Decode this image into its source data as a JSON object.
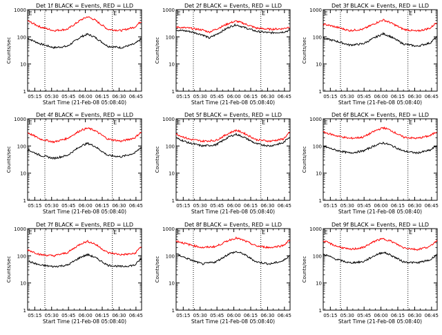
{
  "figure": {
    "ylabel": "Counts/sec",
    "xlabel": "Start Time (21-Feb-08 05:08:40)",
    "series_colors": {
      "events": "#000000",
      "lld": "#ff0000"
    },
    "background": "#ffffff"
  },
  "chart_data": [
    {
      "type": "line",
      "title": "Det 1f BLACK = Events, RED = LLD",
      "xlabel": "Start Time (21-Feb-08 05:08:40)",
      "ylabel": "Counts/sec",
      "yscale": "log",
      "ylim": [
        1,
        1000
      ],
      "x_tick_labels": [
        "05:15",
        "05:30",
        "05:45",
        "06:00",
        "06:15",
        "06:30",
        "06:45"
      ],
      "y_tick_labels": [
        "1",
        "10",
        "100",
        "1000"
      ],
      "markers": {
        "lines": [
          "05:24",
          "06:24"
        ],
        "labels": [
          "E"
        ]
      },
      "x": [
        "05:08",
        "05:20",
        "05:32",
        "05:44",
        "05:56",
        "06:02",
        "06:08",
        "06:20",
        "06:32",
        "06:44",
        "06:49"
      ],
      "series": [
        {
          "values": [
            90,
            55,
            40,
            45,
            100,
            125,
            100,
            45,
            40,
            55,
            80
          ]
        },
        {
          "values": [
            400,
            230,
            170,
            190,
            420,
            550,
            430,
            190,
            170,
            230,
            360
          ]
        }
      ]
    },
    {
      "type": "line",
      "title": "Det 2f BLACK = Events, RED = LLD",
      "xlabel": "Start Time (21-Feb-08 05:08:40)",
      "ylabel": "Counts/sec",
      "yscale": "log",
      "ylim": [
        1,
        1000
      ],
      "x_tick_labels": [
        "05:15",
        "05:30",
        "05:45",
        "06:00",
        "06:15",
        "06:30",
        "06:45"
      ],
      "y_tick_labels": [
        "1",
        "10",
        "100",
        "1000"
      ],
      "markers": {
        "lines": [
          "05:24",
          "06:24"
        ],
        "labels": [
          "E"
        ]
      },
      "x": [
        "05:08",
        "05:20",
        "05:32",
        "05:38",
        "05:44",
        "05:56",
        "06:02",
        "06:08",
        "06:20",
        "06:32",
        "06:44",
        "06:49"
      ],
      "series": [
        {
          "values": [
            180,
            160,
            120,
            90,
            120,
            230,
            280,
            230,
            160,
            140,
            150,
            170
          ]
        },
        {
          "values": [
            230,
            210,
            180,
            150,
            190,
            320,
            380,
            320,
            210,
            190,
            200,
            230
          ]
        }
      ]
    },
    {
      "type": "line",
      "title": "Det 3f BLACK = Events, RED = LLD",
      "xlabel": "Start Time (21-Feb-08 05:08:40)",
      "ylabel": "Counts/sec",
      "yscale": "log",
      "ylim": [
        1,
        1000
      ],
      "x_tick_labels": [
        "05:15",
        "05:30",
        "05:45",
        "06:00",
        "06:15",
        "06:30",
        "06:45"
      ],
      "y_tick_labels": [
        "1",
        "10",
        "100",
        "1000"
      ],
      "markers": {
        "lines": [
          "05:24",
          "06:24"
        ],
        "labels": [
          "E"
        ]
      },
      "x": [
        "05:08",
        "05:20",
        "05:32",
        "05:44",
        "05:56",
        "06:02",
        "06:08",
        "06:20",
        "06:32",
        "06:44",
        "06:49"
      ],
      "series": [
        {
          "values": [
            90,
            70,
            50,
            55,
            100,
            130,
            105,
            55,
            45,
            60,
            95
          ]
        },
        {
          "values": [
            300,
            230,
            170,
            190,
            330,
            420,
            340,
            190,
            160,
            210,
            330
          ]
        }
      ]
    },
    {
      "type": "line",
      "title": "Det 4f BLACK = Events, RED = LLD",
      "xlabel": "Start Time (21-Feb-08 05:08:40)",
      "ylabel": "Counts/sec",
      "yscale": "log",
      "ylim": [
        1,
        1000
      ],
      "x_tick_labels": [
        "05:15",
        "05:30",
        "05:45",
        "06:00",
        "06:15",
        "06:30",
        "06:45"
      ],
      "y_tick_labels": [
        "1",
        "10",
        "100",
        "1000"
      ],
      "markers": {
        "lines": [
          "05:24",
          "06:24"
        ],
        "labels": [
          "E"
        ]
      },
      "x": [
        "05:08",
        "05:20",
        "05:32",
        "05:44",
        "05:56",
        "06:02",
        "06:08",
        "06:20",
        "06:32",
        "06:44",
        "06:49"
      ],
      "series": [
        {
          "values": [
            75,
            45,
            35,
            45,
            100,
            125,
            100,
            45,
            40,
            55,
            85
          ]
        },
        {
          "values": [
            320,
            180,
            140,
            190,
            380,
            450,
            380,
            180,
            150,
            200,
            310
          ]
        }
      ]
    },
    {
      "type": "line",
      "title": "Det 5f BLACK = Events, RED = LLD",
      "xlabel": "Start Time (21-Feb-08 05:08:40)",
      "ylabel": "Counts/sec",
      "yscale": "log",
      "ylim": [
        1,
        1000
      ],
      "x_tick_labels": [
        "05:15",
        "05:30",
        "05:45",
        "06:00",
        "06:15",
        "06:30",
        "06:45"
      ],
      "y_tick_labels": [
        "1",
        "10",
        "100",
        "1000"
      ],
      "markers": {
        "lines": [
          "05:24",
          "06:24"
        ],
        "labels": [
          "E"
        ]
      },
      "x": [
        "05:08",
        "05:20",
        "05:32",
        "05:44",
        "05:56",
        "06:02",
        "06:08",
        "06:20",
        "06:32",
        "06:44",
        "06:49"
      ],
      "series": [
        {
          "values": [
            200,
            130,
            100,
            110,
            220,
            270,
            220,
            120,
            100,
            130,
            210
          ]
        },
        {
          "values": [
            280,
            180,
            150,
            160,
            300,
            380,
            310,
            170,
            150,
            180,
            300
          ]
        }
      ]
    },
    {
      "type": "line",
      "title": "Det 6f BLACK = Events, RED = LLD",
      "xlabel": "Start Time (21-Feb-08 05:08:40)",
      "ylabel": "Counts/sec",
      "yscale": "log",
      "ylim": [
        1,
        1000
      ],
      "x_tick_labels": [
        "05:15",
        "05:30",
        "05:45",
        "06:00",
        "06:15",
        "06:30",
        "06:45"
      ],
      "y_tick_labels": [
        "1",
        "10",
        "100",
        "1000"
      ],
      "markers": {
        "lines": [
          "05:24",
          "06:24"
        ],
        "labels": [
          "E"
        ]
      },
      "x": [
        "05:08",
        "05:20",
        "05:32",
        "05:44",
        "05:56",
        "06:02",
        "06:08",
        "06:20",
        "06:32",
        "06:44",
        "06:49"
      ],
      "series": [
        {
          "values": [
            100,
            70,
            55,
            65,
            110,
            130,
            110,
            65,
            55,
            70,
            100
          ]
        },
        {
          "values": [
            330,
            240,
            190,
            210,
            380,
            470,
            390,
            210,
            190,
            240,
            330
          ]
        }
      ]
    },
    {
      "type": "line",
      "title": "Det 7f BLACK = Events, RED = LLD",
      "xlabel": "Start Time (21-Feb-08 05:08:40)",
      "ylabel": "Counts/sec",
      "yscale": "log",
      "ylim": [
        1,
        1000
      ],
      "x_tick_labels": [
        "05:15",
        "05:30",
        "05:45",
        "06:00",
        "06:15",
        "06:30",
        "06:45"
      ],
      "y_tick_labels": [
        "1",
        "10",
        "100",
        "1000"
      ],
      "markers": {
        "lines": [
          "05:24",
          "06:24"
        ],
        "labels": [
          "E"
        ]
      },
      "x": [
        "05:08",
        "05:20",
        "05:32",
        "05:44",
        "05:56",
        "06:02",
        "06:08",
        "06:20",
        "06:32",
        "06:44",
        "06:49"
      ],
      "series": [
        {
          "values": [
            65,
            45,
            40,
            45,
            90,
            110,
            90,
            45,
            40,
            45,
            75
          ]
        },
        {
          "values": [
            170,
            110,
            100,
            130,
            280,
            340,
            280,
            130,
            110,
            120,
            210
          ]
        }
      ]
    },
    {
      "type": "line",
      "title": "Det 8f BLACK = Events, RED = LLD",
      "xlabel": "Start Time (21-Feb-08 05:08:40)",
      "ylabel": "Counts/sec",
      "yscale": "log",
      "ylim": [
        1,
        1000
      ],
      "x_tick_labels": [
        "05:15",
        "05:30",
        "05:45",
        "06:00",
        "06:15",
        "06:30",
        "06:45"
      ],
      "y_tick_labels": [
        "1",
        "10",
        "100",
        "1000"
      ],
      "markers": {
        "lines": [
          "05:24",
          "06:24"
        ],
        "labels": [
          "E"
        ]
      },
      "x": [
        "05:08",
        "05:20",
        "05:32",
        "05:44",
        "05:56",
        "06:02",
        "06:08",
        "06:20",
        "06:32",
        "06:44",
        "06:49"
      ],
      "series": [
        {
          "values": [
            120,
            75,
            50,
            60,
            120,
            140,
            120,
            60,
            50,
            65,
            100
          ]
        },
        {
          "values": [
            360,
            260,
            200,
            220,
            380,
            450,
            380,
            230,
            200,
            240,
            360
          ]
        }
      ]
    },
    {
      "type": "line",
      "title": "Det 9f BLACK = Events, RED = LLD",
      "xlabel": "Start Time (21-Feb-08 05:08:40)",
      "ylabel": "Counts/sec",
      "yscale": "log",
      "ylim": [
        1,
        1000
      ],
      "x_tick_labels": [
        "05:15",
        "05:30",
        "05:45",
        "06:00",
        "06:15",
        "06:30",
        "06:45"
      ],
      "y_tick_labels": [
        "1",
        "10",
        "100",
        "1000"
      ],
      "markers": {
        "lines": [
          "05:24",
          "06:24"
        ],
        "labels": [
          "E"
        ]
      },
      "x": [
        "05:08",
        "05:20",
        "05:32",
        "05:44",
        "05:56",
        "06:02",
        "06:08",
        "06:20",
        "06:32",
        "06:44",
        "06:49"
      ],
      "series": [
        {
          "values": [
            120,
            75,
            55,
            60,
            110,
            135,
            110,
            60,
            55,
            70,
            110
          ]
        },
        {
          "values": [
            370,
            230,
            170,
            200,
            370,
            420,
            360,
            200,
            170,
            220,
            360
          ]
        }
      ]
    }
  ]
}
